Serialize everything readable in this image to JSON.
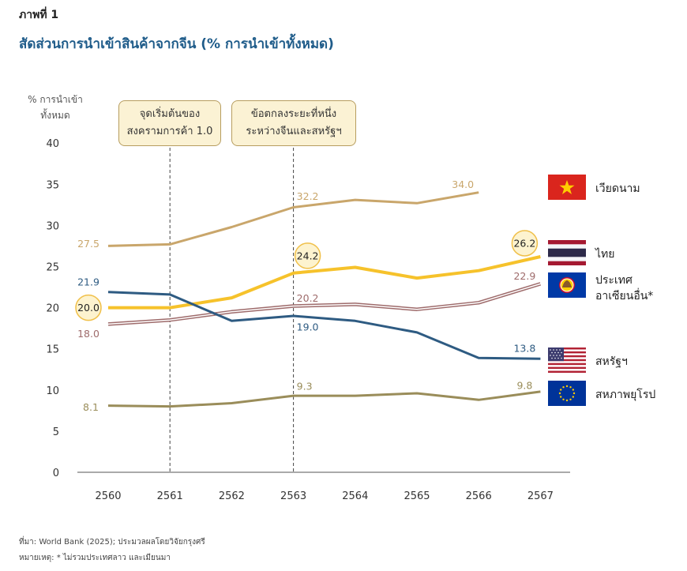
{
  "figure_label": "ภาพที่ 1",
  "title": "สัดส่วนการนำเข้าสินค้าจากจีน (% การนำเข้าทั้งหมด)",
  "ylabel_line1": "% การนำเข้า",
  "ylabel_line2": "ทั้งหมด",
  "callouts": [
    {
      "line1": "จุดเริ่มต้นของ",
      "line2": "สงครามการค้า 1.0",
      "year": "2561"
    },
    {
      "line1": "ข้อตกลงระยะที่หนึ่ง",
      "line2": "ระหว่างจีนและสหรัฐฯ",
      "year": "2563"
    }
  ],
  "chart_data": {
    "type": "line",
    "x": [
      "2560",
      "2561",
      "2562",
      "2563",
      "2564",
      "2565",
      "2566",
      "2567"
    ],
    "ylim": [
      0,
      40
    ],
    "yticks": [
      0,
      5,
      10,
      15,
      20,
      25,
      30,
      35,
      40
    ],
    "grid": false,
    "series": [
      {
        "name": "เวียดนาม",
        "color": "#c9a66b",
        "width": 3,
        "values": [
          27.5,
          27.7,
          29.8,
          32.2,
          33.1,
          32.7,
          34.0,
          null
        ],
        "labels": [
          {
            "i": 0,
            "text": "27.5"
          },
          {
            "i": 3,
            "text": "32.2"
          },
          {
            "i": 6,
            "text": "34.0"
          }
        ]
      },
      {
        "name": "ไทย",
        "color": "#f6c22b",
        "width": 4,
        "values": [
          20.0,
          20.0,
          21.2,
          24.2,
          24.9,
          23.6,
          24.5,
          26.2
        ],
        "labels": [
          {
            "i": 0,
            "text": "20.0",
            "circle": true
          },
          {
            "i": 3,
            "text": "24.2",
            "circle": true
          },
          {
            "i": 7,
            "text": "26.2",
            "circle": true
          }
        ]
      },
      {
        "name": "ประเทศอาเซียนอื่น*",
        "color": "#9e6b6b",
        "width": 3,
        "outline": true,
        "values": [
          18.0,
          18.5,
          19.5,
          20.2,
          20.4,
          19.8,
          20.6,
          22.9
        ],
        "labels": [
          {
            "i": 0,
            "text": "18.0"
          },
          {
            "i": 3,
            "text": "20.2"
          },
          {
            "i": 7,
            "text": "22.9"
          }
        ]
      },
      {
        "name": "สหรัฐฯ",
        "color": "#2e5b82",
        "width": 3,
        "values": [
          21.9,
          21.6,
          18.4,
          19.0,
          18.4,
          17.0,
          13.9,
          13.8
        ],
        "labels": [
          {
            "i": 0,
            "text": "21.9"
          },
          {
            "i": 3,
            "text": "19.0"
          },
          {
            "i": 7,
            "text": "13.8"
          }
        ]
      },
      {
        "name": "สหภาพยุโรป",
        "color": "#9a8d5a",
        "width": 3,
        "values": [
          8.1,
          8.0,
          8.4,
          9.3,
          9.3,
          9.6,
          8.8,
          9.8
        ],
        "labels": [
          {
            "i": 0,
            "text": "8.1"
          },
          {
            "i": 3,
            "text": "9.3"
          },
          {
            "i": 7,
            "text": "9.8"
          }
        ]
      }
    ],
    "vlines": [
      "2561",
      "2563"
    ]
  },
  "legend": [
    {
      "label": "เวียดนาม",
      "flag": "vietnam-flag"
    },
    {
      "label": "ไทย",
      "flag": "thailand-flag"
    },
    {
      "label_line1": "ประเทศ",
      "label_line2": "อาเซียนอื่น*",
      "flag": "asean-flag"
    },
    {
      "label": "สหรัฐฯ",
      "flag": "usa-flag"
    },
    {
      "label": "สหภาพยุโรป",
      "flag": "eu-flag"
    }
  ],
  "source": "ที่มา: World Bank (2025); ประมวลผลโดยวิจัยกรุงศรี",
  "note": "หมายเหตุ: * ไม่รวมประเทศลาว และเมียนมา"
}
